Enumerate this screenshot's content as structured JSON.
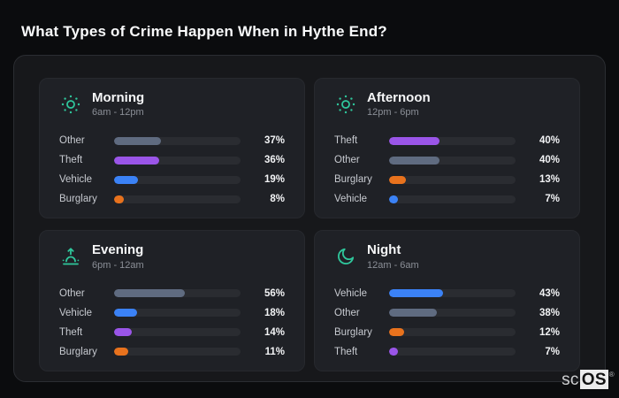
{
  "page_title": "What Types of Crime Happen When in Hythe End?",
  "watermark": {
    "prefix": "sc",
    "suffix": "OS",
    "registered": "®"
  },
  "colors": {
    "icon_accent": "#2fc79c",
    "track": "#2a2c31",
    "categories": {
      "Other": "#5f6b80",
      "Theft": "#9a55e8",
      "Vehicle": "#3b82f6",
      "Burglary": "#e8721d"
    }
  },
  "chart_data": [
    {
      "type": "bar",
      "orientation": "horizontal",
      "title": "Morning",
      "subtitle": "6am - 12pm",
      "icon": "sun-icon",
      "unit": "%",
      "xlim": [
        0,
        100
      ],
      "categories": [
        "Other",
        "Theft",
        "Vehicle",
        "Burglary"
      ],
      "values": [
        37,
        36,
        19,
        8
      ]
    },
    {
      "type": "bar",
      "orientation": "horizontal",
      "title": "Afternoon",
      "subtitle": "12pm - 6pm",
      "icon": "sun-icon",
      "unit": "%",
      "xlim": [
        0,
        100
      ],
      "categories": [
        "Theft",
        "Other",
        "Burglary",
        "Vehicle"
      ],
      "values": [
        40,
        40,
        13,
        7
      ]
    },
    {
      "type": "bar",
      "orientation": "horizontal",
      "title": "Evening",
      "subtitle": "6pm - 12am",
      "icon": "sunrise-icon",
      "unit": "%",
      "xlim": [
        0,
        100
      ],
      "categories": [
        "Other",
        "Vehicle",
        "Theft",
        "Burglary"
      ],
      "values": [
        56,
        18,
        14,
        11
      ]
    },
    {
      "type": "bar",
      "orientation": "horizontal",
      "title": "Night",
      "subtitle": "12am - 6am",
      "icon": "moon-icon",
      "unit": "%",
      "xlim": [
        0,
        100
      ],
      "categories": [
        "Vehicle",
        "Other",
        "Burglary",
        "Theft"
      ],
      "values": [
        43,
        38,
        12,
        7
      ]
    }
  ]
}
